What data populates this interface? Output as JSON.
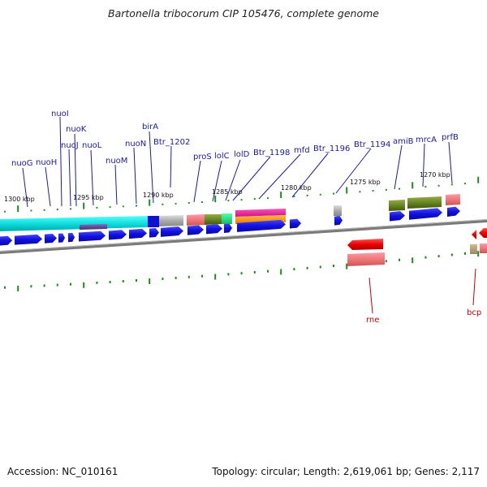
{
  "title": "Bartonella tribocorum CIP 105476, complete genome",
  "footer": {
    "accession": "Accession: NC_010161",
    "summary": "Topology: circular; Length: 2,619,061 bp; Genes: 2,117"
  },
  "ticks": [
    "1300 kbp",
    "1295 kbp",
    "1290 kbp",
    "1285 kbp",
    "1280 kbp",
    "1275 kbp",
    "1270 kbp"
  ],
  "upper_gene_labels": [
    "nuoG",
    "nuoH",
    "nuoI",
    "nuoJ",
    "nuoK",
    "nuoL",
    "nuoM",
    "nuoN",
    "birA",
    "Btr_1202",
    "proS",
    "lolC",
    "lolD",
    "Btr_1198",
    "mfd",
    "Btr_1196",
    "Btr_1194",
    "amiB",
    "mrcA",
    "prfB"
  ],
  "lower_gene_labels": [
    "rne",
    "bcp"
  ],
  "colors": {
    "label_blue": "#1a1aa6",
    "label_red": "#c80000",
    "cds": "#1515e0",
    "tick_green": "#1f8a1f",
    "backbone": "#7a7a7a"
  }
}
